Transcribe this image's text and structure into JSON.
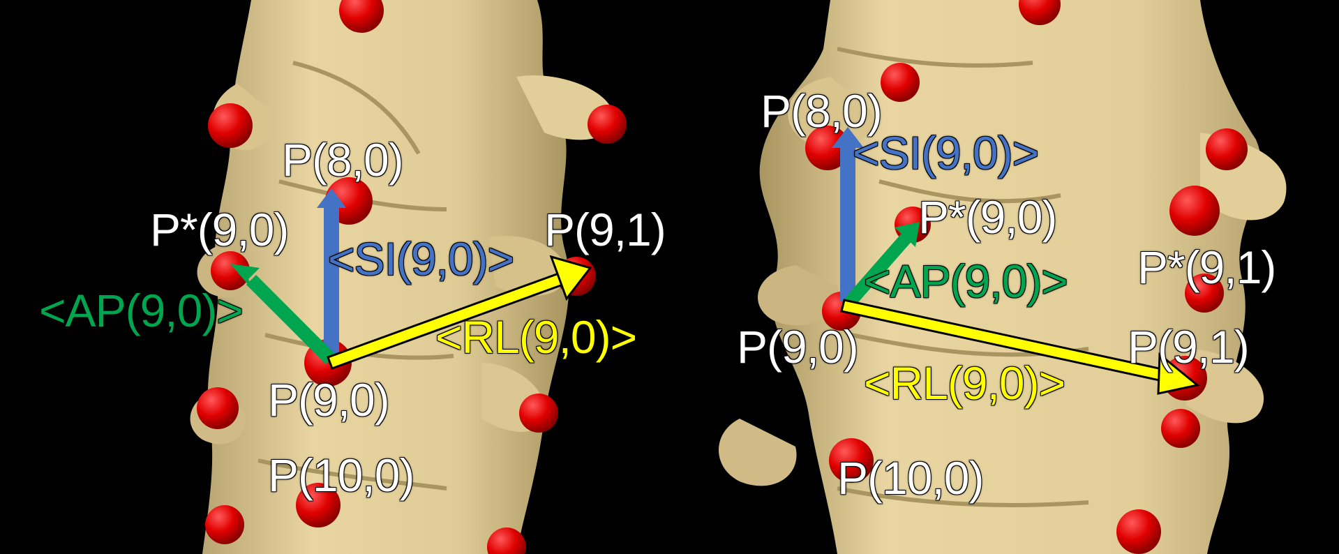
{
  "colors": {
    "background": "#000000",
    "bone": "#e8d5a1",
    "bone_shadow": "#b9a571",
    "landmark": "#e00000",
    "si_axis": "#4472c4",
    "ap_axis": "#00a550",
    "rl_axis": "#ffff00",
    "label_white": "#ffffff"
  },
  "left_view": {
    "p_8_0": "P(8,0)",
    "p_star_9_0": "P*(9,0)",
    "p_9_1": "P(9,1)",
    "si": "<SI(9,0)>",
    "ap": "<AP(9,0)>",
    "rl": "<RL(9,0)>",
    "p_9_0": "P(9,0)",
    "p_10_0": "P(10,0)"
  },
  "right_view": {
    "p_8_0": "P(8,0)",
    "si": "<SI(9,0)>",
    "p_star_9_0": "P*(9,0)",
    "ap": "<AP(9,0)>",
    "p_star_9_1": "P*(9,1)",
    "p_9_0": "P(9,0)",
    "p_9_1": "P(9,1)",
    "rl": "<RL(9,0)>",
    "p_10_0": "P(10,0)"
  }
}
